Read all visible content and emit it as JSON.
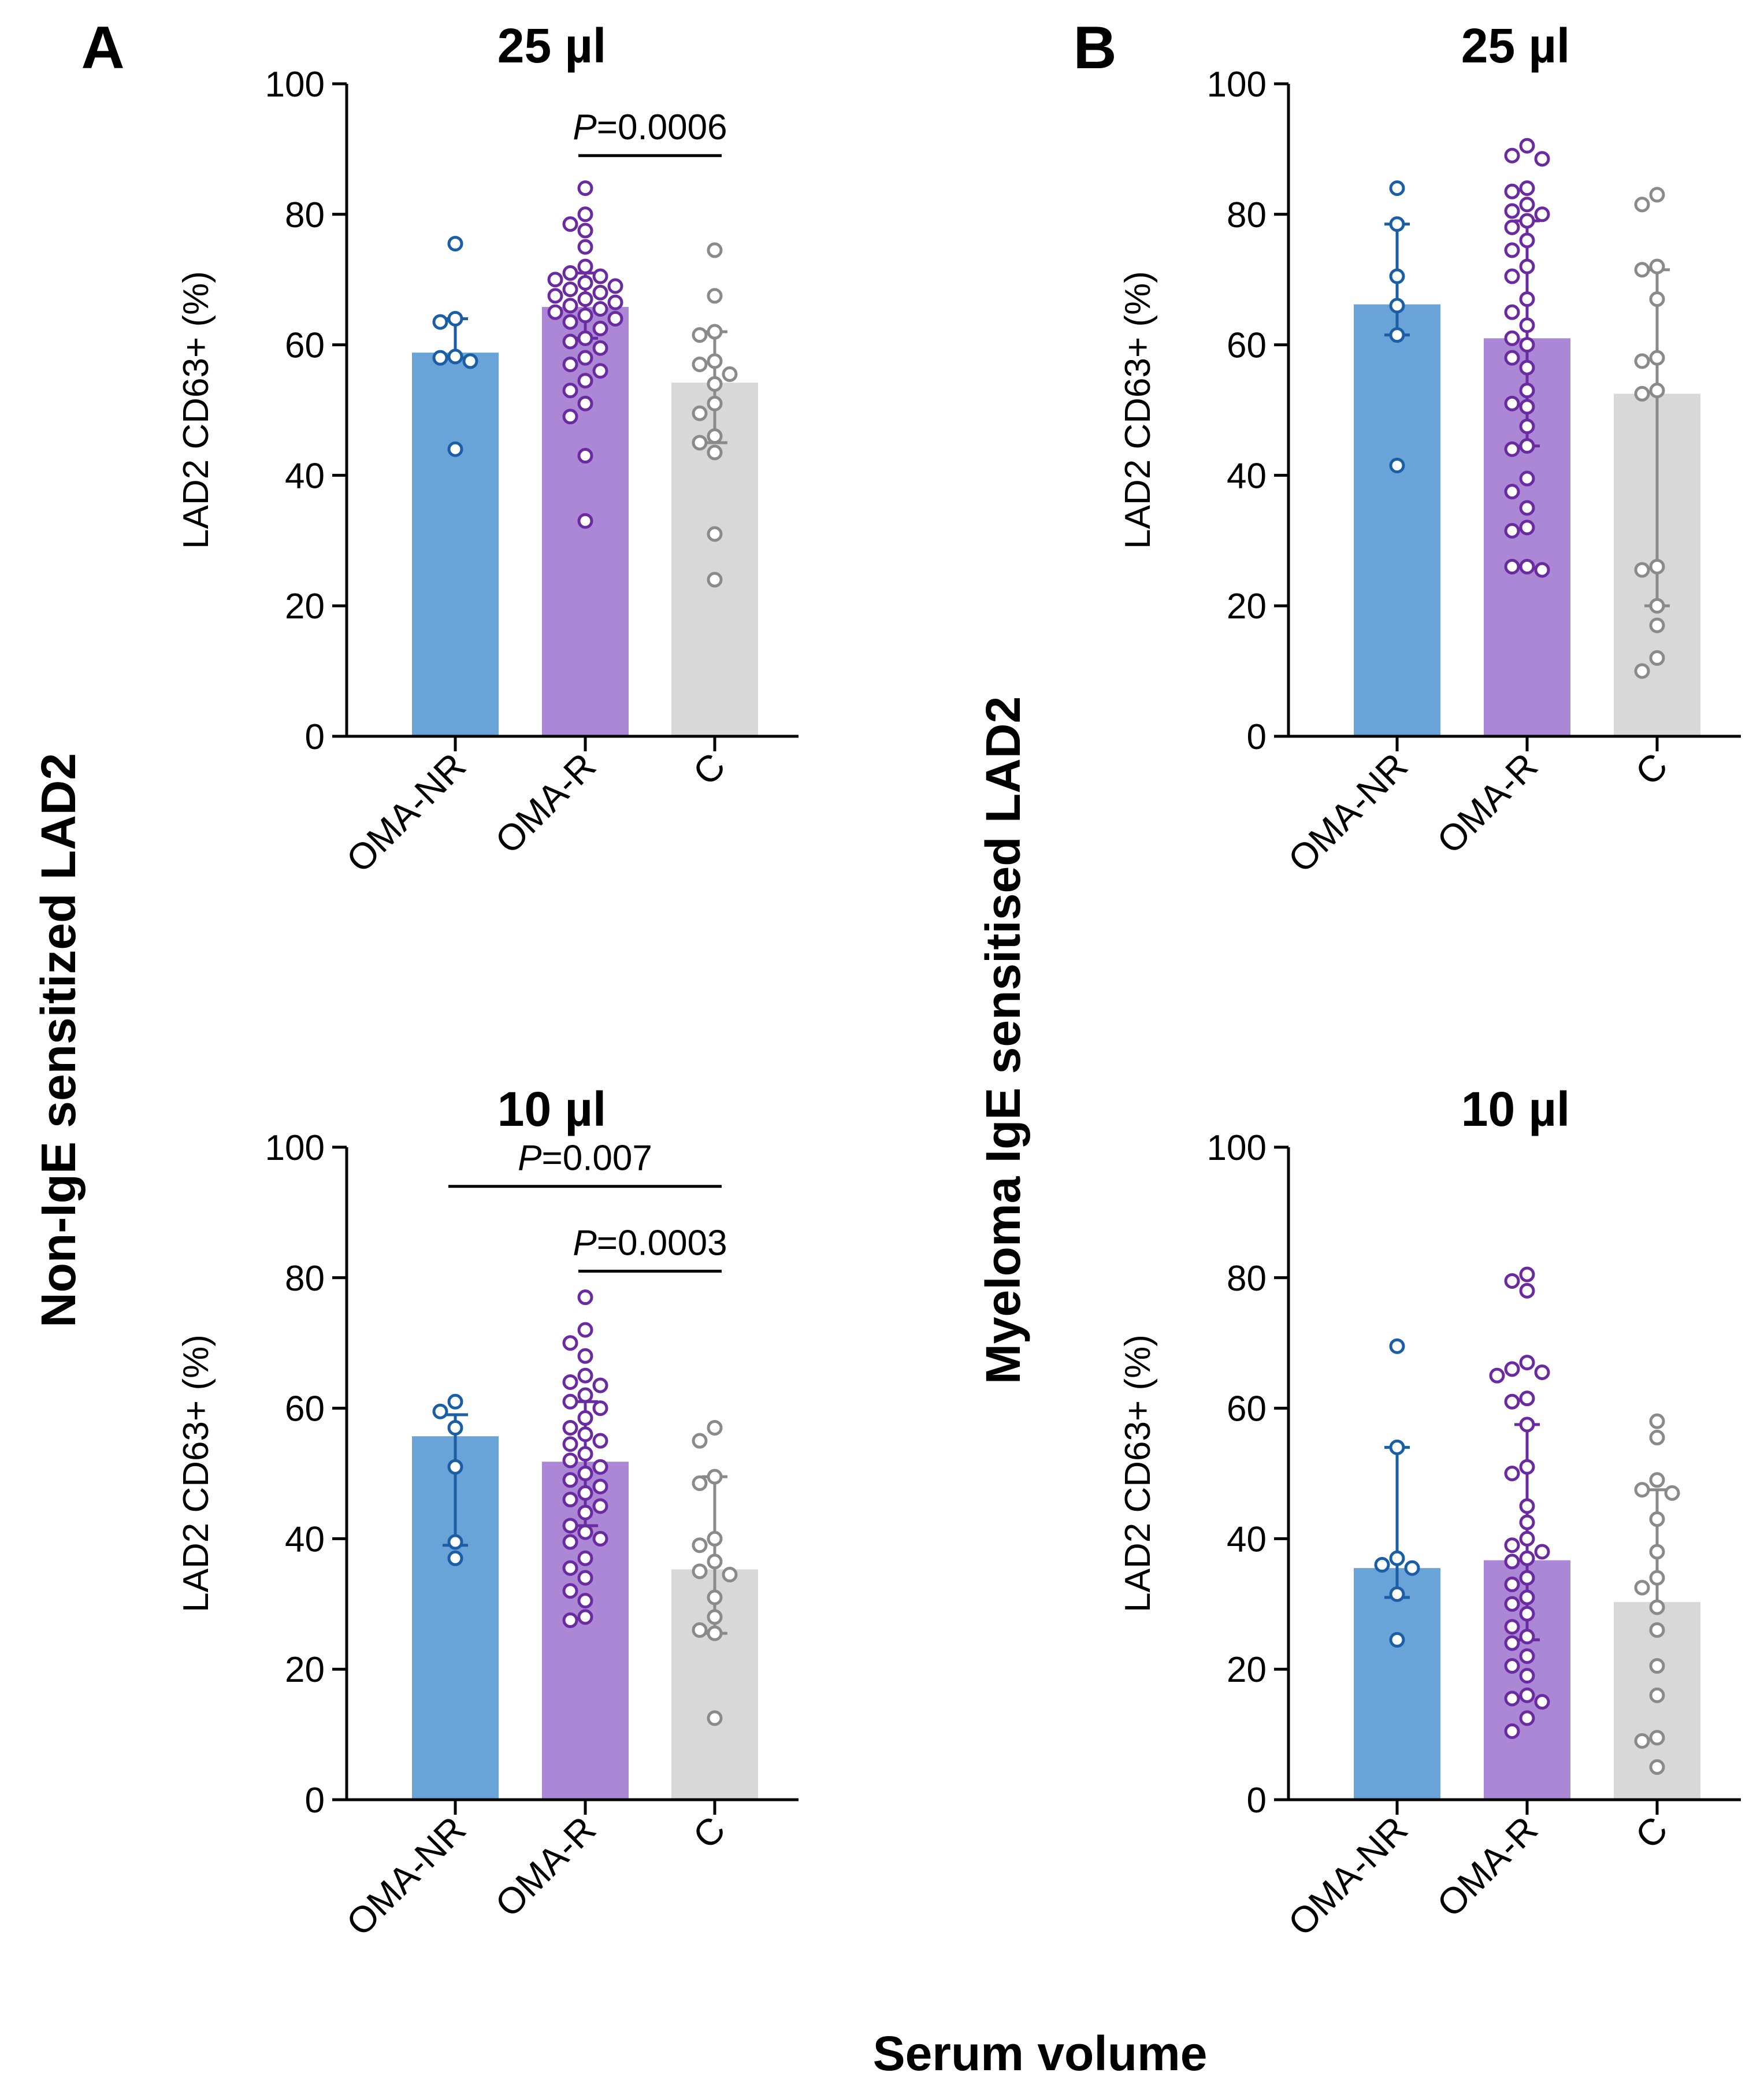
{
  "figure": {
    "panel_a_label": "A",
    "panel_b_label": "B",
    "row_label_a": "Non-IgE sensitized LAD2",
    "row_label_b": "Myeloma IgE sensitised LAD2",
    "x_label": "Serum volume",
    "colors": {
      "OMA-NR_bar": "#6aa3d8",
      "OMA-NR_point": "#1a5ea6",
      "OMA-R_bar": "#ab87d6",
      "OMA-R_point": "#6a2ba0",
      "C_bar": "#d8d8d8",
      "C_point": "#8a8a8a"
    }
  },
  "chart_data": [
    {
      "id": "A-25",
      "type": "bar",
      "title": "25 µl",
      "xlabel": "",
      "ylabel": "LAD2 CD63+ (%)",
      "ylim": [
        0,
        100
      ],
      "yticks": [
        0,
        20,
        40,
        60,
        80,
        100
      ],
      "categories": [
        "OMA-NR",
        "OMA-R",
        "C"
      ],
      "values": [
        58.8,
        65.8,
        54.2
      ],
      "error_low": [
        58.0,
        61.0,
        45.0
      ],
      "error_high": [
        64.0,
        71.0,
        62.0
      ],
      "points": [
        [
          75.5,
          64.0,
          63.5,
          58.0,
          58.2,
          57.5,
          44.0
        ],
        [
          84.0,
          80.0,
          78.5,
          77.5,
          75.0,
          72.0,
          71.0,
          70.5,
          70.0,
          69.5,
          69.0,
          68.5,
          68.0,
          67.5,
          67.0,
          66.5,
          66.0,
          65.5,
          65.0,
          64.5,
          64.0,
          63.5,
          62.5,
          61.0,
          60.5,
          59.5,
          58.0,
          57.0,
          56.0,
          54.5,
          53.0,
          51.0,
          49.0,
          43.0,
          33.0
        ],
        [
          74.5,
          67.5,
          62.0,
          61.5,
          57.5,
          57.0,
          55.5,
          54.0,
          51.0,
          49.5,
          46.0,
          45.0,
          43.5,
          31.0,
          24.0
        ]
      ],
      "significance": [
        {
          "text_italic": "P",
          "text": "=0.0006",
          "from": 1,
          "to": 2,
          "y": 89
        }
      ]
    },
    {
      "id": "B-25",
      "type": "bar",
      "title": "25 µl",
      "xlabel": "",
      "ylabel": "LAD2 CD63+ (%)",
      "ylim": [
        0,
        100
      ],
      "yticks": [
        0,
        20,
        40,
        60,
        80,
        100
      ],
      "categories": [
        "OMA-NR",
        "OMA-R",
        "C"
      ],
      "values": [
        66.2,
        61.0,
        52.5
      ],
      "error_low": [
        61.5,
        44.5,
        20.0
      ],
      "error_high": [
        78.5,
        79.0,
        71.5
      ],
      "points": [
        [
          84.0,
          78.5,
          70.5,
          66.0,
          61.5,
          41.5
        ],
        [
          90.5,
          89.0,
          88.5,
          84.0,
          83.5,
          81.5,
          80.5,
          80.0,
          79.0,
          78.0,
          76.0,
          74.5,
          72.0,
          70.5,
          67.0,
          65.0,
          63.0,
          61.0,
          60.0,
          58.0,
          56.5,
          53.0,
          51.0,
          50.5,
          47.5,
          44.5,
          44.0,
          39.5,
          37.5,
          35.0,
          32.0,
          31.5,
          26.0,
          26.0,
          25.5
        ],
        [
          83.0,
          81.5,
          72.0,
          71.5,
          67.0,
          58.0,
          57.5,
          53.0,
          52.5,
          26.0,
          25.5,
          20.0,
          17.0,
          12.0,
          10.0
        ]
      ],
      "significance": []
    },
    {
      "id": "A-10",
      "type": "bar",
      "title": "10 µl",
      "xlabel": "",
      "ylabel": "LAD2 CD63+ (%)",
      "ylim": [
        0,
        100
      ],
      "yticks": [
        0,
        20,
        40,
        60,
        80,
        100
      ],
      "categories": [
        "OMA-NR",
        "OMA-R",
        "C"
      ],
      "values": [
        55.7,
        51.8,
        35.3
      ],
      "error_low": [
        39.0,
        42.0,
        25.5
      ],
      "error_high": [
        59.0,
        61.0,
        49.5
      ],
      "points": [
        [
          61.0,
          59.5,
          57.0,
          51.0,
          39.5,
          37.0
        ],
        [
          77.0,
          72.0,
          70.0,
          68.0,
          65.0,
          64.0,
          63.5,
          62.0,
          61.0,
          60.0,
          58.5,
          57.0,
          56.0,
          55.0,
          54.5,
          53.0,
          52.0,
          51.0,
          50.0,
          49.0,
          48.0,
          47.0,
          46.0,
          45.0,
          44.0,
          42.0,
          41.0,
          40.0,
          39.5,
          37.0,
          35.5,
          34.0,
          32.0,
          30.5,
          28.0,
          27.5
        ],
        [
          57.0,
          55.0,
          49.5,
          48.5,
          40.0,
          39.0,
          36.5,
          35.0,
          34.5,
          31.0,
          28.0,
          26.0,
          25.5,
          12.5
        ]
      ],
      "significance": [
        {
          "text_italic": "P",
          "text": "=0.007",
          "from": 0,
          "to": 2,
          "y": 94
        },
        {
          "text_italic": "P",
          "text": "=0.0003",
          "from": 1,
          "to": 2,
          "y": 81
        }
      ]
    },
    {
      "id": "B-10",
      "type": "bar",
      "title": "10 µl",
      "xlabel": "",
      "ylabel": "LAD2 CD63+ (%)",
      "ylim": [
        0,
        100
      ],
      "yticks": [
        0,
        20,
        40,
        60,
        80,
        100
      ],
      "categories": [
        "OMA-NR",
        "OMA-R",
        "C"
      ],
      "values": [
        35.5,
        36.7,
        30.3
      ],
      "error_low": [
        31.0,
        24.5,
        30.3
      ],
      "error_high": [
        54.0,
        57.5,
        47.5
      ],
      "points": [
        [
          69.5,
          54.0,
          37.0,
          36.0,
          35.5,
          31.5,
          24.5
        ],
        [
          80.5,
          79.5,
          78.0,
          67.0,
          66.0,
          65.5,
          65.0,
          61.5,
          61.0,
          57.5,
          51.0,
          50.0,
          45.0,
          42.5,
          40.0,
          39.0,
          38.0,
          37.0,
          36.5,
          34.0,
          33.0,
          31.0,
          30.0,
          28.5,
          26.5,
          25.0,
          24.0,
          22.0,
          20.5,
          19.0,
          16.0,
          15.5,
          15.0,
          12.5,
          10.5
        ],
        [
          58.0,
          55.5,
          49.0,
          47.5,
          47.0,
          43.0,
          38.0,
          34.0,
          32.5,
          29.5,
          26.0,
          20.5,
          16.0,
          9.5,
          9.0,
          5.0
        ]
      ],
      "significance": []
    }
  ]
}
